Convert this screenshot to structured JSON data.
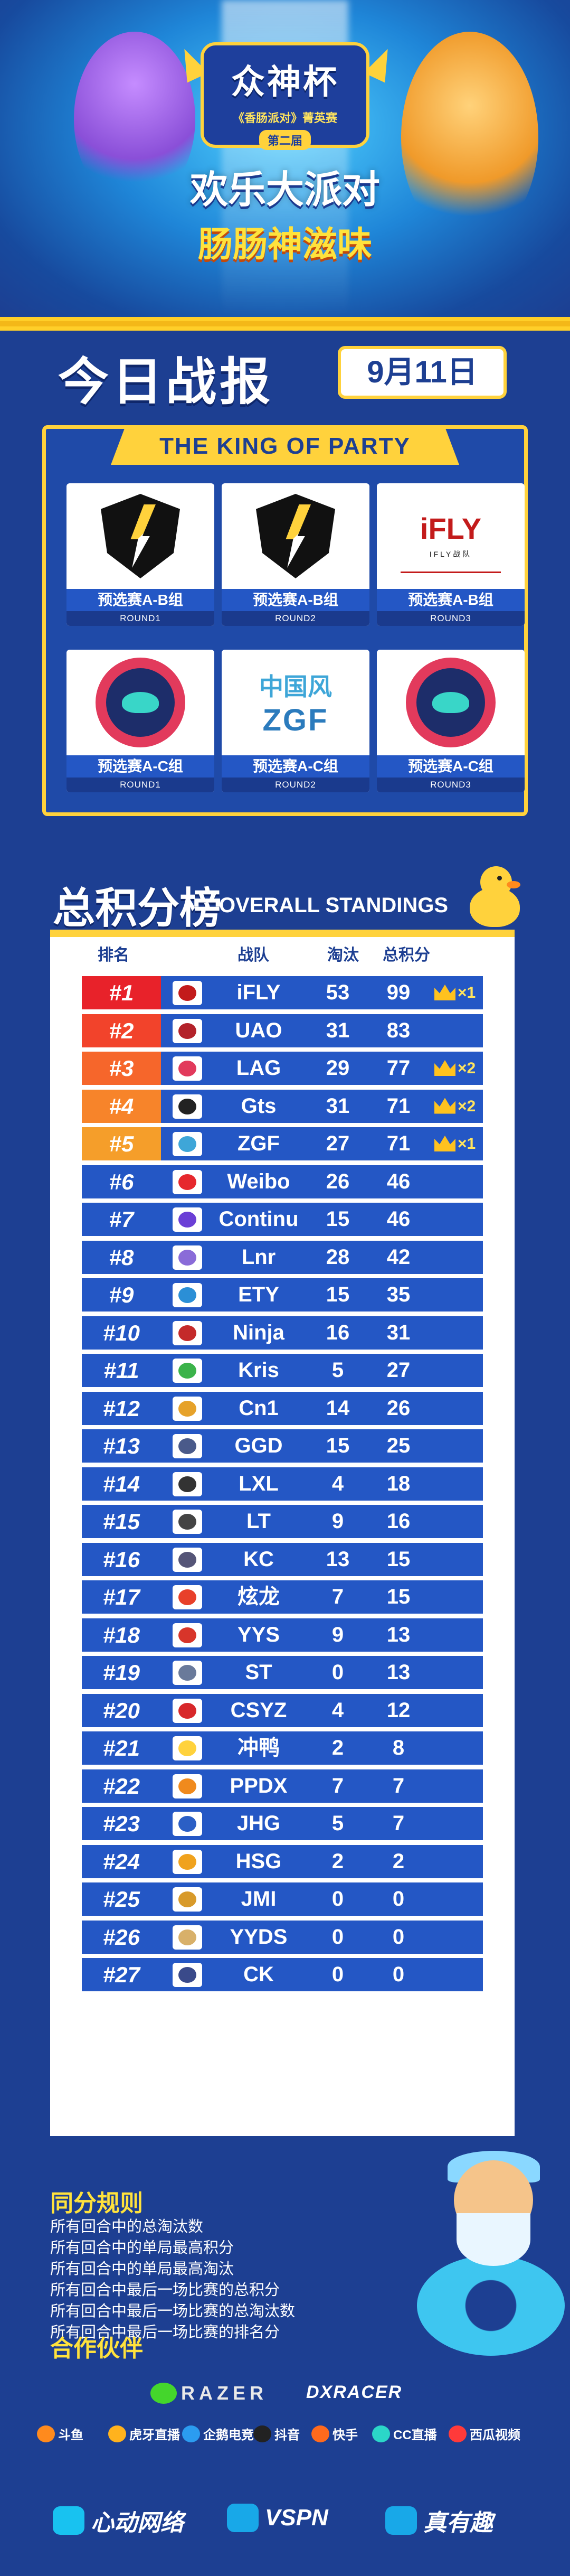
{
  "hero": {
    "logo_main": "众神杯",
    "logo_sub": "《香肠派对》菁英赛",
    "logo_edition": "第二届",
    "title_line1": "欢乐大派对",
    "title_line2": "肠肠神滋味"
  },
  "header": {
    "today_title": "今日战报",
    "date": "9月11日"
  },
  "matches": {
    "banner": "THE KING OF PARTY",
    "cards": [
      {
        "group": "预选赛A-B组",
        "round": "ROUND1",
        "logo": "gts-shield-icon"
      },
      {
        "group": "预选赛A-B组",
        "round": "ROUND2",
        "logo": "gts-shield-icon"
      },
      {
        "group": "预选赛A-B组",
        "round": "ROUND3",
        "logo": "ifly-logo",
        "logo_text": "iFLY",
        "logo_sub": "IFLY战队"
      },
      {
        "group": "预选赛A-C组",
        "round": "ROUND1",
        "logo": "lag-ufo-icon"
      },
      {
        "group": "预选赛A-C组",
        "round": "ROUND2",
        "logo": "zgf-logo",
        "logo_text": "中国风",
        "logo_sub": "ZGF"
      },
      {
        "group": "预选赛A-C组",
        "round": "ROUND3",
        "logo": "lag-ufo-icon"
      }
    ]
  },
  "standings": {
    "title": "总积分榜",
    "subtitle": "OVERALL STANDINGS",
    "columns": {
      "rank": "排名",
      "team": "战队",
      "elim": "淘汰",
      "points": "总积分"
    },
    "rows": [
      {
        "rank": "#1",
        "team": "iFLY",
        "elim": "53",
        "points": "99",
        "crowns": "×1",
        "rank_color": "#e8222a",
        "logo_color": "#c31b1b"
      },
      {
        "rank": "#2",
        "team": "UAO",
        "elim": "31",
        "points": "83",
        "crowns": "",
        "rank_color": "#f2432b",
        "logo_color": "#b3222a"
      },
      {
        "rank": "#3",
        "team": "LAG",
        "elim": "29",
        "points": "77",
        "crowns": "×2",
        "rank_color": "#f6662b",
        "logo_color": "#e23a5c"
      },
      {
        "rank": "#4",
        "team": "Gts",
        "elim": "31",
        "points": "71",
        "crowns": "×2",
        "rank_color": "#f7842a",
        "logo_color": "#222222"
      },
      {
        "rank": "#5",
        "team": "ZGF",
        "elim": "27",
        "points": "71",
        "crowns": "×1",
        "rank_color": "#f59e2a",
        "logo_color": "#3ea6d8"
      },
      {
        "rank": "#6",
        "team": "Weibo",
        "elim": "26",
        "points": "46",
        "crowns": "",
        "rank_color": "#2457c5",
        "logo_color": "#e6282d"
      },
      {
        "rank": "#7",
        "team": "Continu",
        "elim": "15",
        "points": "46",
        "crowns": "",
        "rank_color": "#2457c5",
        "logo_color": "#6b3fd6"
      },
      {
        "rank": "#8",
        "team": "Lnr",
        "elim": "28",
        "points": "42",
        "crowns": "",
        "rank_color": "#2457c5",
        "logo_color": "#8a6bd8"
      },
      {
        "rank": "#9",
        "team": "ETY",
        "elim": "15",
        "points": "35",
        "crowns": "",
        "rank_color": "#2457c5",
        "logo_color": "#2b8fd6"
      },
      {
        "rank": "#10",
        "team": "Ninja",
        "elim": "16",
        "points": "31",
        "crowns": "",
        "rank_color": "#2457c5",
        "logo_color": "#c42a2a"
      },
      {
        "rank": "#11",
        "team": "Kris",
        "elim": "5",
        "points": "27",
        "crowns": "",
        "rank_color": "#2457c5",
        "logo_color": "#3bb34a"
      },
      {
        "rank": "#12",
        "team": "Cn1",
        "elim": "14",
        "points": "26",
        "crowns": "",
        "rank_color": "#2457c5",
        "logo_color": "#e6a22a"
      },
      {
        "rank": "#13",
        "team": "GGD",
        "elim": "15",
        "points": "25",
        "crowns": "",
        "rank_color": "#2457c5",
        "logo_color": "#4a5a8a"
      },
      {
        "rank": "#14",
        "team": "LXL",
        "elim": "4",
        "points": "18",
        "crowns": "",
        "rank_color": "#2457c5",
        "logo_color": "#333333"
      },
      {
        "rank": "#15",
        "team": "LT",
        "elim": "9",
        "points": "16",
        "crowns": "",
        "rank_color": "#2457c5",
        "logo_color": "#444444"
      },
      {
        "rank": "#16",
        "team": "KC",
        "elim": "13",
        "points": "15",
        "crowns": "",
        "rank_color": "#2457c5",
        "logo_color": "#555577"
      },
      {
        "rank": "#17",
        "team": "炫龙",
        "elim": "7",
        "points": "15",
        "crowns": "",
        "rank_color": "#2457c5",
        "logo_color": "#e8402a"
      },
      {
        "rank": "#18",
        "team": "YYS",
        "elim": "9",
        "points": "13",
        "crowns": "",
        "rank_color": "#2457c5",
        "logo_color": "#d8352a"
      },
      {
        "rank": "#19",
        "team": "ST",
        "elim": "0",
        "points": "13",
        "crowns": "",
        "rank_color": "#2457c5",
        "logo_color": "#6a7a9a"
      },
      {
        "rank": "#20",
        "team": "CSYZ",
        "elim": "4",
        "points": "12",
        "crowns": "",
        "rank_color": "#2457c5",
        "logo_color": "#d8282a"
      },
      {
        "rank": "#21",
        "team": "冲鸭",
        "elim": "2",
        "points": "8",
        "crowns": "",
        "rank_color": "#2457c5",
        "logo_color": "#ffd23c"
      },
      {
        "rank": "#22",
        "team": "PPDX",
        "elim": "7",
        "points": "7",
        "crowns": "",
        "rank_color": "#2457c5",
        "logo_color": "#f08a1d"
      },
      {
        "rank": "#23",
        "team": "JHG",
        "elim": "5",
        "points": "7",
        "crowns": "",
        "rank_color": "#2457c5",
        "logo_color": "#2b5fc5"
      },
      {
        "rank": "#24",
        "team": "HSG",
        "elim": "2",
        "points": "2",
        "crowns": "",
        "rank_color": "#2457c5",
        "logo_color": "#f0a21d"
      },
      {
        "rank": "#25",
        "team": "JMI",
        "elim": "0",
        "points": "0",
        "crowns": "",
        "rank_color": "#2457c5",
        "logo_color": "#d89a2a"
      },
      {
        "rank": "#26",
        "team": "YYDS",
        "elim": "0",
        "points": "0",
        "crowns": "",
        "rank_color": "#2457c5",
        "logo_color": "#d8b06a"
      },
      {
        "rank": "#27",
        "team": "CK",
        "elim": "0",
        "points": "0",
        "crowns": "",
        "rank_color": "#2457c5",
        "logo_color": "#3a4a8a"
      }
    ]
  },
  "rules": {
    "title": "同分规则",
    "items": [
      "所有回合中的总淘汰数",
      "所有回合中的单局最高积分",
      "所有回合中的单局最高淘汰",
      "所有回合中最后一场比赛的总积分",
      "所有回合中最后一场比赛的总淘汰数",
      "所有回合中最后一场比赛的排名分"
    ]
  },
  "partners": {
    "title": "合作伙伴",
    "main": [
      {
        "name": "RAZER",
        "color": "#44d62c"
      },
      {
        "name": "DXRACER",
        "color": "#ffffff"
      }
    ],
    "media": [
      {
        "name": "斗鱼",
        "color": "#ff8a1d"
      },
      {
        "name": "虎牙直播",
        "color": "#ffb21d"
      },
      {
        "name": "企鹅电竞",
        "color": "#2b9cf0"
      },
      {
        "name": "抖音",
        "color": "#222222"
      },
      {
        "name": "快手",
        "color": "#ff6a1d"
      },
      {
        "name": "CC直播",
        "color": "#2bd6c8"
      },
      {
        "name": "西瓜视频",
        "color": "#ff3a3a"
      }
    ],
    "organizers": [
      {
        "name": "心动网络",
        "color": "#18c2f0"
      },
      {
        "name": "VSPN",
        "color": "#ffffff"
      },
      {
        "name": "真有趣",
        "color": "#ffffff"
      }
    ]
  }
}
